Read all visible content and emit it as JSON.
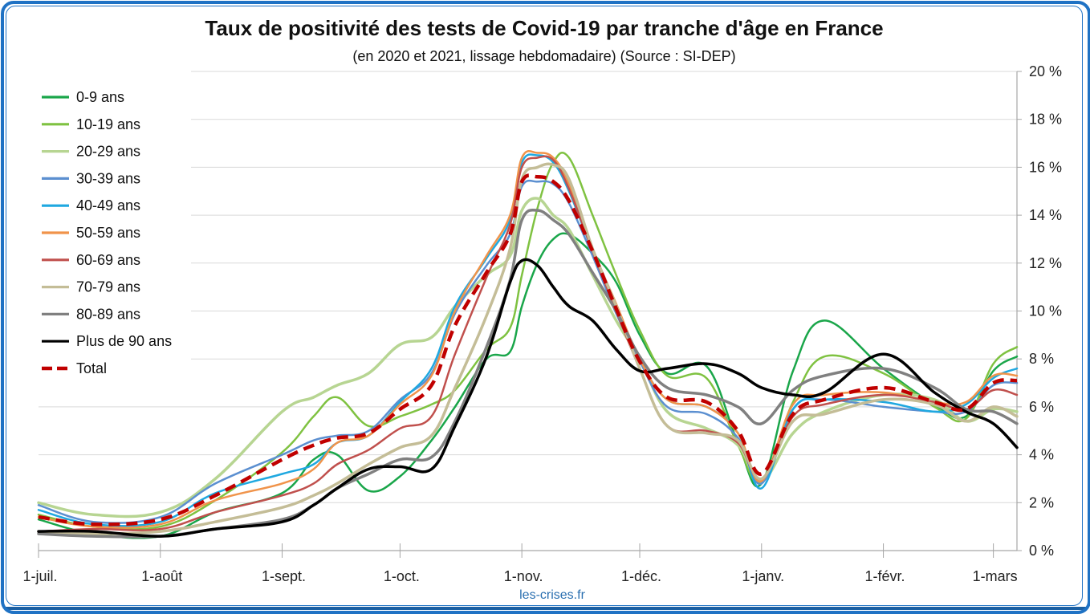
{
  "chart_data": {
    "type": "line",
    "title": "Taux de positivité des tests de Covid-19 par tranche d'âge en France",
    "subtitle": "(en 2020 et 2021, lissage hebdomadaire) (Source : SI-DEP)",
    "source_label": "les-crises.fr",
    "xlabel": "",
    "ylabel": "",
    "y_axis_position": "right",
    "ylim": [
      0,
      20
    ],
    "y_ticks": [
      0,
      2,
      4,
      6,
      8,
      10,
      12,
      14,
      16,
      18,
      20
    ],
    "y_tick_labels": [
      "0 %",
      "2 %",
      "4 %",
      "6 %",
      "8 %",
      "10 %",
      "12 %",
      "14 %",
      "16 %",
      "18 %",
      "20 %"
    ],
    "x_unit": "days since 1 July 2020",
    "xlim": [
      0,
      249
    ],
    "x_ticks": [
      0,
      31,
      62,
      92,
      123,
      153,
      184,
      215,
      243
    ],
    "x_tick_labels": [
      "1-juil.",
      "1-août",
      "1-sept.",
      "1-oct.",
      "1-nov.",
      "1-déc.",
      "1-janv.",
      "1-févr.",
      "1-mars"
    ],
    "grid": true,
    "legend_position": "top-left",
    "x": [
      0,
      14,
      31,
      45,
      62,
      70,
      76,
      84,
      92,
      100,
      106,
      114,
      120,
      123,
      127,
      131,
      135,
      141,
      147,
      153,
      160,
      170,
      178,
      184,
      192,
      200,
      215,
      228,
      236,
      243,
      249
    ],
    "series": [
      {
        "name": "0-9 ans",
        "color": "#1aa64a",
        "dash": false,
        "width": 2.5,
        "values": [
          1.3,
          0.7,
          0.6,
          1.6,
          2.4,
          3.8,
          4.0,
          2.5,
          3.1,
          4.6,
          6.0,
          8.0,
          8.3,
          10.2,
          12.0,
          13.0,
          13.2,
          12.4,
          11.2,
          9.0,
          7.4,
          7.7,
          4.5,
          2.8,
          7.5,
          9.6,
          7.6,
          6.1,
          5.6,
          7.5,
          8.1
        ]
      },
      {
        "name": "10-19 ans",
        "color": "#7fc241",
        "dash": false,
        "width": 2.5,
        "values": [
          1.5,
          1.0,
          1.0,
          2.1,
          4.1,
          5.6,
          6.4,
          5.2,
          5.6,
          6.1,
          6.7,
          8.4,
          9.3,
          11.5,
          14.3,
          16.2,
          16.4,
          14.0,
          11.5,
          9.2,
          7.3,
          7.2,
          4.4,
          2.9,
          6.2,
          8.1,
          7.4,
          6.0,
          5.5,
          7.8,
          8.5
        ]
      },
      {
        "name": "20-29 ans",
        "color": "#b7d592",
        "dash": false,
        "width": 3.5,
        "values": [
          2.0,
          1.5,
          1.6,
          3.0,
          5.8,
          6.4,
          6.9,
          7.4,
          8.6,
          8.9,
          10.2,
          11.5,
          12.3,
          14.2,
          14.7,
          14.0,
          13.4,
          11.5,
          9.6,
          8.0,
          5.8,
          5.1,
          4.4,
          2.9,
          4.9,
          5.8,
          6.5,
          6.3,
          5.4,
          5.9,
          5.8
        ]
      },
      {
        "name": "30-39 ans",
        "color": "#5b8fd0",
        "dash": false,
        "width": 2.5,
        "values": [
          1.9,
          1.2,
          1.4,
          2.8,
          4.0,
          4.6,
          4.8,
          5.0,
          6.3,
          7.4,
          9.9,
          11.9,
          13.2,
          15.2,
          15.4,
          15.3,
          14.5,
          12.3,
          9.9,
          7.9,
          6.0,
          5.7,
          4.7,
          2.8,
          5.9,
          6.3,
          6.0,
          5.8,
          5.8,
          6.9,
          7.0
        ]
      },
      {
        "name": "40-49 ans",
        "color": "#1fa8e0",
        "dash": false,
        "width": 2.5,
        "values": [
          1.7,
          1.1,
          1.2,
          2.4,
          3.2,
          3.6,
          4.5,
          4.8,
          6.2,
          7.6,
          10.2,
          12.2,
          13.8,
          16.2,
          16.5,
          16.2,
          15.0,
          12.5,
          10.2,
          8.0,
          6.3,
          6.0,
          4.9,
          2.6,
          5.9,
          6.3,
          6.2,
          5.8,
          6.1,
          7.2,
          7.6
        ]
      },
      {
        "name": "50-59 ans",
        "color": "#f0934a",
        "dash": false,
        "width": 2.5,
        "values": [
          1.4,
          1.0,
          1.1,
          2.1,
          2.8,
          3.4,
          4.5,
          4.8,
          6.1,
          7.3,
          10.0,
          12.3,
          14.0,
          16.4,
          16.6,
          16.4,
          15.3,
          12.6,
          10.3,
          8.0,
          6.3,
          6.0,
          4.9,
          2.9,
          6.1,
          6.5,
          6.6,
          6.2,
          6.2,
          7.3,
          7.3
        ]
      },
      {
        "name": "60-69 ans",
        "color": "#c0504d",
        "dash": false,
        "width": 2.5,
        "values": [
          0.8,
          0.9,
          0.9,
          1.6,
          2.3,
          2.8,
          3.6,
          4.2,
          5.1,
          5.6,
          8.2,
          11.4,
          13.6,
          16.0,
          16.4,
          16.3,
          15.1,
          12.5,
          10.0,
          7.6,
          5.2,
          5.0,
          4.5,
          3.0,
          5.6,
          6.1,
          6.5,
          6.2,
          5.9,
          6.7,
          6.5
        ]
      },
      {
        "name": "70-79 ans",
        "color": "#c4bd97",
        "dash": false,
        "width": 3.5,
        "values": [
          0.8,
          0.7,
          0.8,
          1.2,
          1.8,
          2.3,
          2.8,
          3.6,
          4.3,
          4.8,
          6.8,
          9.8,
          12.6,
          15.5,
          16.0,
          16.1,
          15.5,
          12.6,
          10.2,
          7.6,
          5.2,
          4.9,
          4.6,
          3.0,
          5.4,
          5.7,
          6.3,
          6.1,
          5.4,
          6.0,
          5.6
        ]
      },
      {
        "name": "80-89 ans",
        "color": "#808080",
        "dash": false,
        "width": 3.5,
        "values": [
          0.7,
          0.6,
          0.6,
          0.9,
          1.3,
          1.9,
          2.6,
          3.2,
          3.8,
          3.9,
          5.4,
          8.5,
          11.3,
          13.8,
          14.2,
          13.8,
          13.2,
          11.6,
          10.0,
          8.1,
          6.8,
          6.5,
          6.0,
          5.3,
          6.7,
          7.3,
          7.6,
          6.8,
          5.9,
          5.8,
          5.3
        ]
      },
      {
        "name": "Plus de 90 ans",
        "color": "#000000",
        "dash": false,
        "width": 3.5,
        "values": [
          0.8,
          0.8,
          0.6,
          0.9,
          1.2,
          1.9,
          2.6,
          3.4,
          3.5,
          3.4,
          5.2,
          8.1,
          11.2,
          12.1,
          11.9,
          11.0,
          10.2,
          9.6,
          8.4,
          7.5,
          7.6,
          7.8,
          7.4,
          6.8,
          6.5,
          6.6,
          8.2,
          6.6,
          5.8,
          5.3,
          4.3
        ]
      },
      {
        "name": "Total",
        "color": "#c00000",
        "dash": true,
        "width": 4.5,
        "values": [
          1.4,
          1.1,
          1.3,
          2.3,
          3.8,
          4.4,
          4.7,
          4.9,
          5.9,
          6.9,
          9.4,
          11.6,
          13.2,
          15.4,
          15.6,
          15.4,
          14.6,
          12.5,
          10.1,
          7.9,
          6.4,
          6.2,
          5.0,
          3.2,
          5.7,
          6.3,
          6.8,
          6.2,
          5.9,
          7.0,
          7.1
        ]
      }
    ]
  }
}
